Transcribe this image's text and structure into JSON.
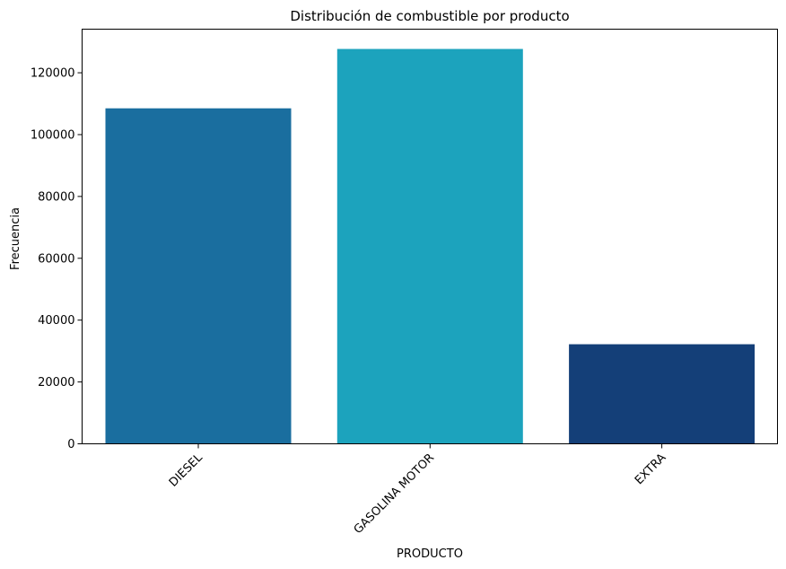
{
  "chart_data": {
    "type": "bar",
    "title": "Distribución de combustible por producto",
    "xlabel": "PRODUCTO",
    "ylabel": "Frecuencia",
    "categories": [
      "DIESEL",
      "GASOLINA MOTOR",
      "EXTRA"
    ],
    "values": [
      108500,
      127700,
      32200
    ],
    "colors": [
      "#1a6e9f",
      "#1ca3bd",
      "#143f78"
    ],
    "ylim": [
      0,
      134100
    ],
    "yticks": [
      0,
      20000,
      40000,
      60000,
      80000,
      100000,
      120000
    ],
    "grid": false,
    "legend": "none"
  }
}
